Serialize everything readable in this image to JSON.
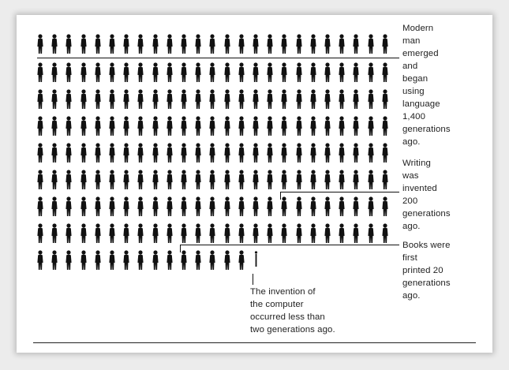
{
  "diagram": {
    "icon": "person-icon",
    "ink_color": "#111111",
    "rows": [
      {
        "count": 25
      },
      {
        "count": 25
      },
      {
        "count": 25
      },
      {
        "count": 25
      },
      {
        "count": 25
      },
      {
        "count": 25
      },
      {
        "count": 25
      },
      {
        "count": 25
      },
      {
        "count": 16
      }
    ],
    "annotations": {
      "modern_man": "Modern\nman\nemerged\nand\nbegan\nusing\nlanguage\n1,400\ngenerations\nago.",
      "writing": "Writing\nwas\ninvented\n200\ngenerations\nago.",
      "books": "Books were\nfirst\nprinted 20\ngenerations\nago.",
      "computer": "The invention of\nthe computer\noccurred less than\ntwo generations ago."
    }
  }
}
